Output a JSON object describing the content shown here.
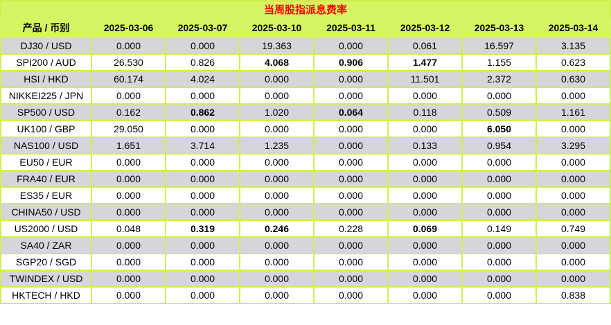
{
  "table": {
    "title": "当周股指派息费率",
    "columns": [
      "产品 / 币别",
      "2025-03-06",
      "2025-03-07",
      "2025-03-10",
      "2025-03-11",
      "2025-03-12",
      "2025-03-13",
      "2025-03-14"
    ],
    "rows": [
      {
        "label": "DJ30 / USD",
        "values": [
          "0.000",
          "0.000",
          "19.363",
          "0.000",
          "0.061",
          "16.597",
          "3.135"
        ],
        "bold": [
          0,
          0,
          0,
          0,
          0,
          0,
          0
        ]
      },
      {
        "label": "SPI200 / AUD",
        "values": [
          "26.530",
          "0.826",
          "4.068",
          "0.906",
          "1.477",
          "1.155",
          "0.623"
        ],
        "bold": [
          0,
          0,
          1,
          1,
          1,
          0,
          0
        ]
      },
      {
        "label": "HSI / HKD",
        "values": [
          "60.174",
          "4.024",
          "0.000",
          "0.000",
          "11.501",
          "2.372",
          "0.630"
        ],
        "bold": [
          0,
          0,
          0,
          0,
          0,
          0,
          0
        ]
      },
      {
        "label": "NIKKEI225 / JPN",
        "values": [
          "0.000",
          "0.000",
          "0.000",
          "0.000",
          "0.000",
          "0.000",
          "0.000"
        ],
        "bold": [
          0,
          0,
          0,
          0,
          0,
          0,
          0
        ]
      },
      {
        "label": "SP500 / USD",
        "values": [
          "0.162",
          "0.862",
          "1.020",
          "0.064",
          "0.118",
          "0.509",
          "1.161"
        ],
        "bold": [
          0,
          1,
          0,
          1,
          0,
          0,
          0
        ]
      },
      {
        "label": "UK100 / GBP",
        "values": [
          "29.050",
          "0.000",
          "0.000",
          "0.000",
          "0.000",
          "6.050",
          "0.000"
        ],
        "bold": [
          0,
          0,
          0,
          0,
          0,
          1,
          0
        ]
      },
      {
        "label": "NAS100 / USD",
        "values": [
          "1.651",
          "3.714",
          "1.235",
          "0.000",
          "0.133",
          "0.954",
          "3.295"
        ],
        "bold": [
          0,
          0,
          0,
          0,
          0,
          0,
          0
        ]
      },
      {
        "label": "EU50 / EUR",
        "values": [
          "0.000",
          "0.000",
          "0.000",
          "0.000",
          "0.000",
          "0.000",
          "0.000"
        ],
        "bold": [
          0,
          0,
          0,
          0,
          0,
          0,
          0
        ]
      },
      {
        "label": "FRA40 / EUR",
        "values": [
          "0.000",
          "0.000",
          "0.000",
          "0.000",
          "0.000",
          "0.000",
          "0.000"
        ],
        "bold": [
          0,
          0,
          0,
          0,
          0,
          0,
          0
        ]
      },
      {
        "label": "ES35 / EUR",
        "values": [
          "0.000",
          "0.000",
          "0.000",
          "0.000",
          "0.000",
          "0.000",
          "0.000"
        ],
        "bold": [
          0,
          0,
          0,
          0,
          0,
          0,
          0
        ]
      },
      {
        "label": "CHINA50 / USD",
        "values": [
          "0.000",
          "0.000",
          "0.000",
          "0.000",
          "0.000",
          "0.000",
          "0.000"
        ],
        "bold": [
          0,
          0,
          0,
          0,
          0,
          0,
          0
        ]
      },
      {
        "label": "US2000 / USD",
        "values": [
          "0.048",
          "0.319",
          "0.246",
          "0.228",
          "0.069",
          "0.149",
          "0.749"
        ],
        "bold": [
          0,
          1,
          1,
          0,
          1,
          0,
          0
        ]
      },
      {
        "label": "SA40 / ZAR",
        "values": [
          "0.000",
          "0.000",
          "0.000",
          "0.000",
          "0.000",
          "0.000",
          "0.000"
        ],
        "bold": [
          0,
          0,
          0,
          0,
          0,
          0,
          0
        ]
      },
      {
        "label": "SGP20 / SGD",
        "values": [
          "0.000",
          "0.000",
          "0.000",
          "0.000",
          "0.000",
          "0.000",
          "0.000"
        ],
        "bold": [
          0,
          0,
          0,
          0,
          0,
          0,
          0
        ]
      },
      {
        "label": "TWINDEX / USD",
        "values": [
          "0.000",
          "0.000",
          "0.000",
          "0.000",
          "0.000",
          "0.000",
          "0.000"
        ],
        "bold": [
          0,
          0,
          0,
          0,
          0,
          0,
          0
        ]
      },
      {
        "label": "HKTECH / HKD",
        "values": [
          "0.000",
          "0.000",
          "0.000",
          "0.000",
          "0.000",
          "0.000",
          "0.838"
        ],
        "bold": [
          0,
          0,
          0,
          0,
          0,
          0,
          0
        ]
      }
    ]
  },
  "colors": {
    "header_bg": "#D6F563",
    "grid": "#CDF04E",
    "row_alt_bg": "#D6D6DA",
    "row_bg": "#FFFFFF",
    "title_text": "#FF0000",
    "text": "#000000"
  }
}
